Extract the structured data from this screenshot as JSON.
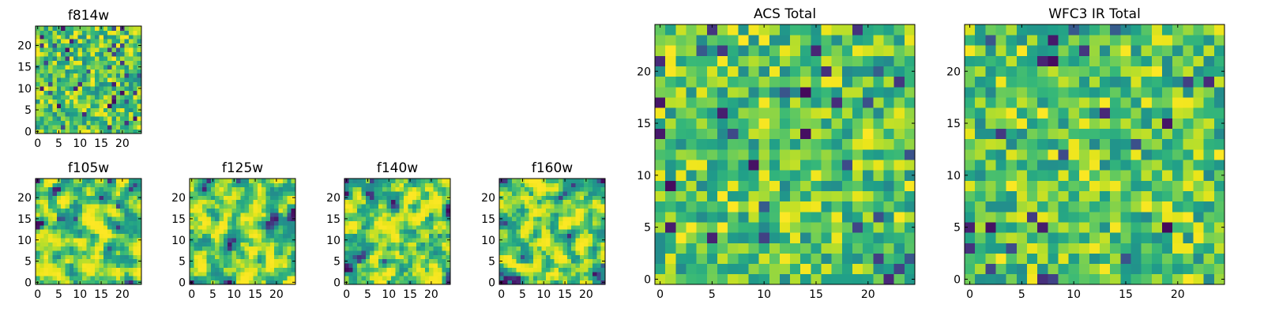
{
  "colormap": "viridis",
  "colors": {
    "low": "#440154",
    "mid_low": "#31688e",
    "mid": "#21918c",
    "mid_high": "#5ec962",
    "high": "#fde725",
    "frame": "#000000",
    "background": "#ffffff"
  },
  "chart_data": [
    {
      "type": "heatmap",
      "id": "f814w",
      "title": "f814w",
      "xlim": [
        0,
        24
      ],
      "ylim": [
        0,
        24
      ],
      "xticks": [
        0,
        5,
        10,
        15,
        20
      ],
      "yticks": [
        0,
        5,
        10,
        15,
        20
      ],
      "grid": false,
      "seed": 814,
      "smooth": 0,
      "dark_fraction": 0.06,
      "bright_fraction": 0.12
    },
    {
      "type": "heatmap",
      "id": "f105w",
      "title": "f105w",
      "xlim": [
        0,
        24
      ],
      "ylim": [
        0,
        24
      ],
      "xticks": [
        0,
        5,
        10,
        15,
        20
      ],
      "yticks": [
        0,
        5,
        10,
        15,
        20
      ],
      "grid": false,
      "seed": 105,
      "smooth": 1,
      "dark_fraction": 0.03,
      "bright_fraction": 0.22
    },
    {
      "type": "heatmap",
      "id": "f125w",
      "title": "f125w",
      "xlim": [
        0,
        24
      ],
      "ylim": [
        0,
        24
      ],
      "xticks": [
        0,
        5,
        10,
        15,
        20
      ],
      "yticks": [
        0,
        5,
        10,
        15,
        20
      ],
      "grid": false,
      "seed": 125,
      "smooth": 1,
      "dark_fraction": 0.04,
      "bright_fraction": 0.2
    },
    {
      "type": "heatmap",
      "id": "f140w",
      "title": "f140w",
      "xlim": [
        0,
        24
      ],
      "ylim": [
        0,
        24
      ],
      "xticks": [
        0,
        5,
        10,
        15,
        20
      ],
      "yticks": [
        0,
        5,
        10,
        15,
        20
      ],
      "grid": false,
      "seed": 140,
      "smooth": 1,
      "dark_fraction": 0.04,
      "bright_fraction": 0.22
    },
    {
      "type": "heatmap",
      "id": "f160w",
      "title": "f160w",
      "xlim": [
        0,
        24
      ],
      "ylim": [
        0,
        24
      ],
      "xticks": [
        0,
        5,
        10,
        15,
        20
      ],
      "yticks": [
        0,
        5,
        10,
        15,
        20
      ],
      "grid": false,
      "seed": 160,
      "smooth": 1,
      "dark_fraction": 0.04,
      "bright_fraction": 0.22
    },
    {
      "type": "heatmap",
      "id": "acs_total",
      "title": "ACS Total",
      "xlim": [
        0,
        24
      ],
      "ylim": [
        0,
        24
      ],
      "xticks": [
        0,
        5,
        10,
        15,
        20
      ],
      "yticks": [
        0,
        5,
        10,
        15,
        20
      ],
      "grid": false,
      "seed": 999,
      "smooth": 0,
      "dark_fraction": 0.05,
      "bright_fraction": 0.1
    },
    {
      "type": "heatmap",
      "id": "wfc3_ir_total",
      "title": "WFC3 IR Total",
      "xlim": [
        0,
        24
      ],
      "ylim": [
        0,
        24
      ],
      "xticks": [
        0,
        5,
        10,
        15,
        20
      ],
      "yticks": [
        0,
        5,
        10,
        15,
        20
      ],
      "grid": false,
      "seed": 777,
      "smooth": 0,
      "dark_fraction": 0.04,
      "bright_fraction": 0.1
    }
  ]
}
